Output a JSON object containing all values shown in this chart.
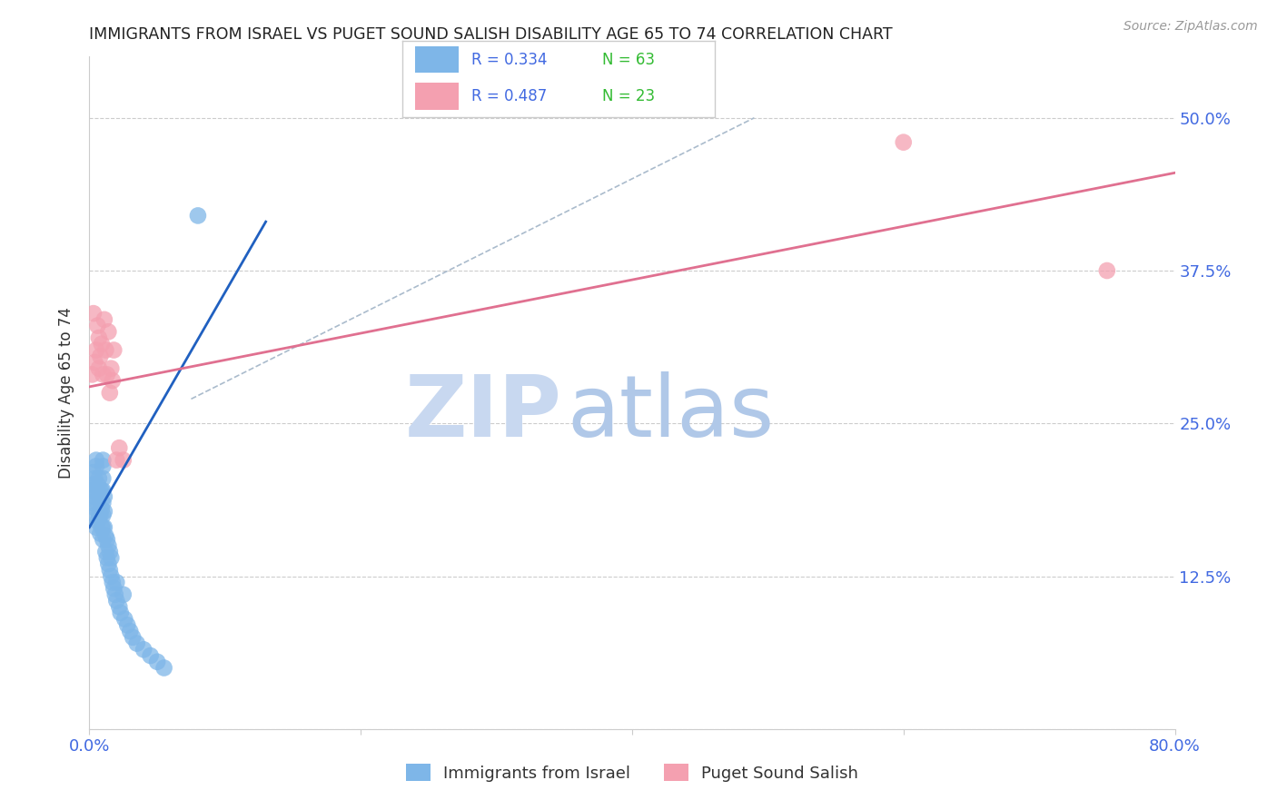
{
  "title": "IMMIGRANTS FROM ISRAEL VS PUGET SOUND SALISH DISABILITY AGE 65 TO 74 CORRELATION CHART",
  "source": "Source: ZipAtlas.com",
  "ylabel": "Disability Age 65 to 74",
  "xlim": [
    0.0,
    0.8
  ],
  "ylim": [
    0.0,
    0.55
  ],
  "yticks": [
    0.0,
    0.125,
    0.25,
    0.375,
    0.5
  ],
  "ytick_labels": [
    "",
    "12.5%",
    "25.0%",
    "37.5%",
    "50.0%"
  ],
  "xticks": [
    0.0,
    0.2,
    0.4,
    0.6,
    0.8
  ],
  "xtick_labels": [
    "0.0%",
    "",
    "",
    "",
    "80.0%"
  ],
  "legend_label1": "Immigrants from Israel",
  "legend_label2": "Puget Sound Salish",
  "blue_color": "#7EB6E8",
  "pink_color": "#F4A0B0",
  "blue_line_color": "#2060C0",
  "pink_line_color": "#E07090",
  "r_n_color": "#4169E1",
  "n_color": "#33BB33",
  "title_color": "#222222",
  "axis_label_color": "#333333",
  "tick_color_right": "#4169E1",
  "tick_color_bottom": "#4169E1",
  "watermark_zip_color": "#C8D8F0",
  "watermark_atlas_color": "#B0C8E8",
  "blue_regline_x": [
    0.0,
    0.13
  ],
  "blue_regline_y": [
    0.165,
    0.415
  ],
  "pink_regline_x": [
    0.0,
    0.8
  ],
  "pink_regline_y": [
    0.28,
    0.455
  ],
  "dashed_line_x": [
    0.075,
    0.49
  ],
  "dashed_line_y": [
    0.27,
    0.5
  ],
  "blue_scatter_x": [
    0.002,
    0.002,
    0.003,
    0.003,
    0.004,
    0.004,
    0.004,
    0.005,
    0.005,
    0.005,
    0.005,
    0.005,
    0.006,
    0.006,
    0.006,
    0.007,
    0.007,
    0.007,
    0.008,
    0.008,
    0.008,
    0.009,
    0.009,
    0.009,
    0.01,
    0.01,
    0.01,
    0.01,
    0.01,
    0.01,
    0.01,
    0.01,
    0.011,
    0.011,
    0.011,
    0.012,
    0.012,
    0.013,
    0.013,
    0.014,
    0.014,
    0.015,
    0.015,
    0.016,
    0.016,
    0.017,
    0.018,
    0.019,
    0.02,
    0.02,
    0.022,
    0.023,
    0.025,
    0.026,
    0.028,
    0.03,
    0.032,
    0.035,
    0.04,
    0.045,
    0.05,
    0.055,
    0.08
  ],
  "blue_scatter_y": [
    0.195,
    0.185,
    0.2,
    0.21,
    0.175,
    0.19,
    0.205,
    0.165,
    0.18,
    0.195,
    0.215,
    0.22,
    0.17,
    0.185,
    0.2,
    0.175,
    0.19,
    0.205,
    0.16,
    0.175,
    0.195,
    0.165,
    0.18,
    0.195,
    0.155,
    0.165,
    0.175,
    0.185,
    0.195,
    0.205,
    0.215,
    0.22,
    0.165,
    0.178,
    0.19,
    0.145,
    0.158,
    0.14,
    0.155,
    0.135,
    0.15,
    0.13,
    0.145,
    0.125,
    0.14,
    0.12,
    0.115,
    0.11,
    0.105,
    0.12,
    0.1,
    0.095,
    0.11,
    0.09,
    0.085,
    0.08,
    0.075,
    0.07,
    0.065,
    0.06,
    0.055,
    0.05,
    0.42
  ],
  "pink_scatter_x": [
    0.002,
    0.003,
    0.004,
    0.005,
    0.006,
    0.007,
    0.007,
    0.008,
    0.009,
    0.01,
    0.011,
    0.012,
    0.013,
    0.014,
    0.015,
    0.016,
    0.017,
    0.018,
    0.02,
    0.022,
    0.025,
    0.6,
    0.75
  ],
  "pink_scatter_y": [
    0.29,
    0.34,
    0.3,
    0.31,
    0.33,
    0.295,
    0.32,
    0.305,
    0.315,
    0.29,
    0.335,
    0.31,
    0.29,
    0.325,
    0.275,
    0.295,
    0.285,
    0.31,
    0.22,
    0.23,
    0.22,
    0.48,
    0.375
  ]
}
